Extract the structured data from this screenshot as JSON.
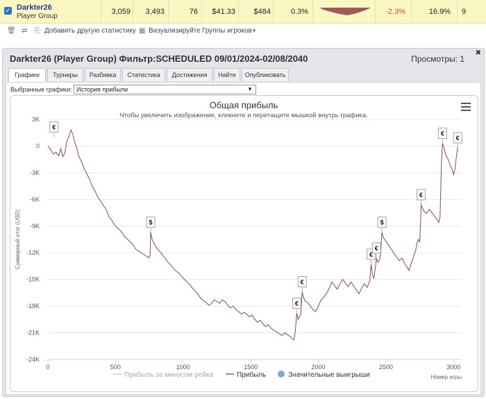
{
  "row": {
    "checked": true,
    "player": "Darkter26",
    "group": "Player Group",
    "cells": [
      "3,059",
      "3,493",
      "76",
      "$41.33",
      "$484",
      "0.3%",
      "-2.3%",
      "16.9%",
      "9"
    ]
  },
  "toolbar": {
    "add_stat": "Добавить другую статистику",
    "visualize": "Визуализируйте",
    "groups": "Группы игроков"
  },
  "panel": {
    "title": "Darkter26 (Player Group) Фильтр:SCHEDULED 09/01/2024-02/08/2040",
    "views": "Просмотры: 1",
    "close": "✖",
    "tabs": [
      "Графики",
      "Турниры",
      "Разбивка",
      "Статистика",
      "Достижения",
      "Найти",
      "Опубликовать"
    ],
    "active_tab": 0,
    "selected_label": "Выбранные графики:",
    "selected_value": "История прибыли"
  },
  "chart_data": {
    "type": "line",
    "title": "Общая прибыль",
    "subtitle": "Чтобы увеличить изображение, кликните и перетащите мышкой внутрь графика.",
    "xlabel": "Номер игры",
    "ylabel": "Суммарный итог (USD)",
    "xlim": [
      0,
      3060
    ],
    "ylim": [
      -24000,
      3000
    ],
    "x_ticks": [
      "0",
      "500",
      "1000",
      "1500",
      "2000",
      "2500",
      "3000"
    ],
    "y_ticks": [
      "3K",
      "0",
      "-3K",
      "-6K",
      "-9K",
      "-12K",
      "-15K",
      "-18K",
      "-21K",
      "-24K"
    ],
    "legend": [
      "Прибыль за минусом рейка",
      "Прибыль",
      "Значительные выигрыши"
    ],
    "legend_position": "bottom",
    "grid": true,
    "series": [
      {
        "name": "Прибыль",
        "color": "#8a5a5a",
        "points": [
          [
            0,
            0
          ],
          [
            20,
            -400
          ],
          [
            40,
            -900
          ],
          [
            60,
            -700
          ],
          [
            80,
            -1100
          ],
          [
            95,
            -300
          ],
          [
            110,
            -1200
          ],
          [
            125,
            -800
          ],
          [
            140,
            600
          ],
          [
            155,
            1000
          ],
          [
            170,
            1800
          ],
          [
            185,
            1300
          ],
          [
            200,
            300
          ],
          [
            215,
            -300
          ],
          [
            230,
            -1200
          ],
          [
            250,
            -1800
          ],
          [
            270,
            -2600
          ],
          [
            290,
            -3200
          ],
          [
            310,
            -3800
          ],
          [
            330,
            -4600
          ],
          [
            350,
            -5100
          ],
          [
            370,
            -5800
          ],
          [
            390,
            -6200
          ],
          [
            410,
            -6700
          ],
          [
            430,
            -7100
          ],
          [
            450,
            -7900
          ],
          [
            470,
            -8300
          ],
          [
            490,
            -8800
          ],
          [
            510,
            -9200
          ],
          [
            530,
            -9400
          ],
          [
            550,
            -9800
          ],
          [
            570,
            -10200
          ],
          [
            590,
            -10500
          ],
          [
            610,
            -10800
          ],
          [
            630,
            -11100
          ],
          [
            650,
            -11600
          ],
          [
            670,
            -11800
          ],
          [
            690,
            -12000
          ],
          [
            710,
            -12200
          ],
          [
            730,
            -12400
          ],
          [
            745,
            -12600
          ],
          [
            755,
            -12300
          ],
          [
            760,
            -9700
          ],
          [
            770,
            -10500
          ],
          [
            790,
            -11100
          ],
          [
            810,
            -11600
          ],
          [
            830,
            -11900
          ],
          [
            850,
            -12300
          ],
          [
            870,
            -12700
          ],
          [
            890,
            -13100
          ],
          [
            910,
            -13400
          ],
          [
            930,
            -13800
          ],
          [
            950,
            -14100
          ],
          [
            970,
            -14300
          ],
          [
            990,
            -14700
          ],
          [
            1010,
            -15000
          ],
          [
            1030,
            -15300
          ],
          [
            1050,
            -15600
          ],
          [
            1070,
            -16000
          ],
          [
            1090,
            -16300
          ],
          [
            1110,
            -16700
          ],
          [
            1130,
            -17100
          ],
          [
            1150,
            -17400
          ],
          [
            1170,
            -17600
          ],
          [
            1190,
            -17900
          ],
          [
            1210,
            -17700
          ],
          [
            1230,
            -17300
          ],
          [
            1250,
            -17500
          ],
          [
            1270,
            -17700
          ],
          [
            1290,
            -17300
          ],
          [
            1310,
            -17500
          ],
          [
            1330,
            -17900
          ],
          [
            1350,
            -18200
          ],
          [
            1370,
            -18000
          ],
          [
            1390,
            -18400
          ],
          [
            1410,
            -18600
          ],
          [
            1430,
            -18900
          ],
          [
            1450,
            -18700
          ],
          [
            1470,
            -18900
          ],
          [
            1490,
            -19200
          ],
          [
            1510,
            -19000
          ],
          [
            1530,
            -19500
          ],
          [
            1550,
            -19800
          ],
          [
            1570,
            -19600
          ],
          [
            1590,
            -20000
          ],
          [
            1610,
            -20300
          ],
          [
            1630,
            -20100
          ],
          [
            1650,
            -20500
          ],
          [
            1670,
            -20700
          ],
          [
            1690,
            -20900
          ],
          [
            1710,
            -21100
          ],
          [
            1730,
            -21300
          ],
          [
            1750,
            -21000
          ],
          [
            1770,
            -21200
          ],
          [
            1790,
            -21400
          ],
          [
            1810,
            -21700
          ],
          [
            1820,
            -21800
          ],
          [
            1830,
            -20800
          ],
          [
            1840,
            -18800
          ],
          [
            1850,
            -19500
          ],
          [
            1860,
            -19200
          ],
          [
            1870,
            -18900
          ],
          [
            1880,
            -16400
          ],
          [
            1890,
            -17000
          ],
          [
            1900,
            -17400
          ],
          [
            1920,
            -17600
          ],
          [
            1940,
            -18000
          ],
          [
            1960,
            -18400
          ],
          [
            1980,
            -18600
          ],
          [
            2000,
            -18000
          ],
          [
            2020,
            -17300
          ],
          [
            2040,
            -17000
          ],
          [
            2060,
            -16600
          ],
          [
            2080,
            -16000
          ],
          [
            2100,
            -15300
          ],
          [
            2120,
            -15700
          ],
          [
            2140,
            -16100
          ],
          [
            2160,
            -15500
          ],
          [
            2180,
            -15000
          ],
          [
            2200,
            -15400
          ],
          [
            2220,
            -15800
          ],
          [
            2240,
            -15300
          ],
          [
            2260,
            -15700
          ],
          [
            2280,
            -16200
          ],
          [
            2300,
            -16600
          ],
          [
            2320,
            -16000
          ],
          [
            2340,
            -15500
          ],
          [
            2360,
            -15900
          ],
          [
            2380,
            -15200
          ],
          [
            2390,
            -13300
          ],
          [
            2400,
            -14500
          ],
          [
            2410,
            -14900
          ],
          [
            2420,
            -13900
          ],
          [
            2430,
            -12600
          ],
          [
            2440,
            -13100
          ],
          [
            2450,
            -12900
          ],
          [
            2460,
            -12200
          ],
          [
            2470,
            -9700
          ],
          [
            2480,
            -10300
          ],
          [
            2500,
            -10700
          ],
          [
            2520,
            -11200
          ],
          [
            2540,
            -11600
          ],
          [
            2560,
            -12100
          ],
          [
            2580,
            -12500
          ],
          [
            2600,
            -12900
          ],
          [
            2620,
            -12600
          ],
          [
            2640,
            -13300
          ],
          [
            2660,
            -13700
          ],
          [
            2670,
            -14000
          ],
          [
            2680,
            -13500
          ],
          [
            2700,
            -12600
          ],
          [
            2720,
            -11700
          ],
          [
            2730,
            -10900
          ],
          [
            2740,
            -10500
          ],
          [
            2750,
            -10800
          ],
          [
            2760,
            -6600
          ],
          [
            2770,
            -7000
          ],
          [
            2780,
            -7300
          ],
          [
            2800,
            -7600
          ],
          [
            2820,
            -7100
          ],
          [
            2840,
            -7500
          ],
          [
            2860,
            -7900
          ],
          [
            2880,
            -8300
          ],
          [
            2890,
            -8600
          ],
          [
            2900,
            -8000
          ],
          [
            2910,
            -2000
          ],
          [
            2918,
            300
          ],
          [
            2930,
            -300
          ],
          [
            2945,
            -1100
          ],
          [
            2960,
            -1500
          ],
          [
            2975,
            -2200
          ],
          [
            2990,
            -2700
          ],
          [
            3000,
            -3200
          ],
          [
            3010,
            -2600
          ],
          [
            3020,
            -1300
          ],
          [
            3030,
            -200
          ]
        ]
      }
    ],
    "big_wins": [
      {
        "x": 45,
        "y": 1000,
        "label": "€"
      },
      {
        "x": 760,
        "y": -9700,
        "label": "$"
      },
      {
        "x": 1840,
        "y": -18800,
        "label": "€"
      },
      {
        "x": 1880,
        "y": -16400,
        "label": "€"
      },
      {
        "x": 2390,
        "y": -13300,
        "label": "€"
      },
      {
        "x": 2430,
        "y": -12600,
        "label": "€"
      },
      {
        "x": 2470,
        "y": -9700,
        "label": "$"
      },
      {
        "x": 2760,
        "y": -6600,
        "label": "€"
      },
      {
        "x": 2918,
        "y": 300,
        "label": "€"
      },
      {
        "x": 3030,
        "y": -200,
        "label": "€"
      }
    ],
    "colors": {
      "profit": "#8a5a5a",
      "rake": "#cccccc",
      "big_wins": "#7fa3e0",
      "grid": "#e8e8e8"
    }
  }
}
